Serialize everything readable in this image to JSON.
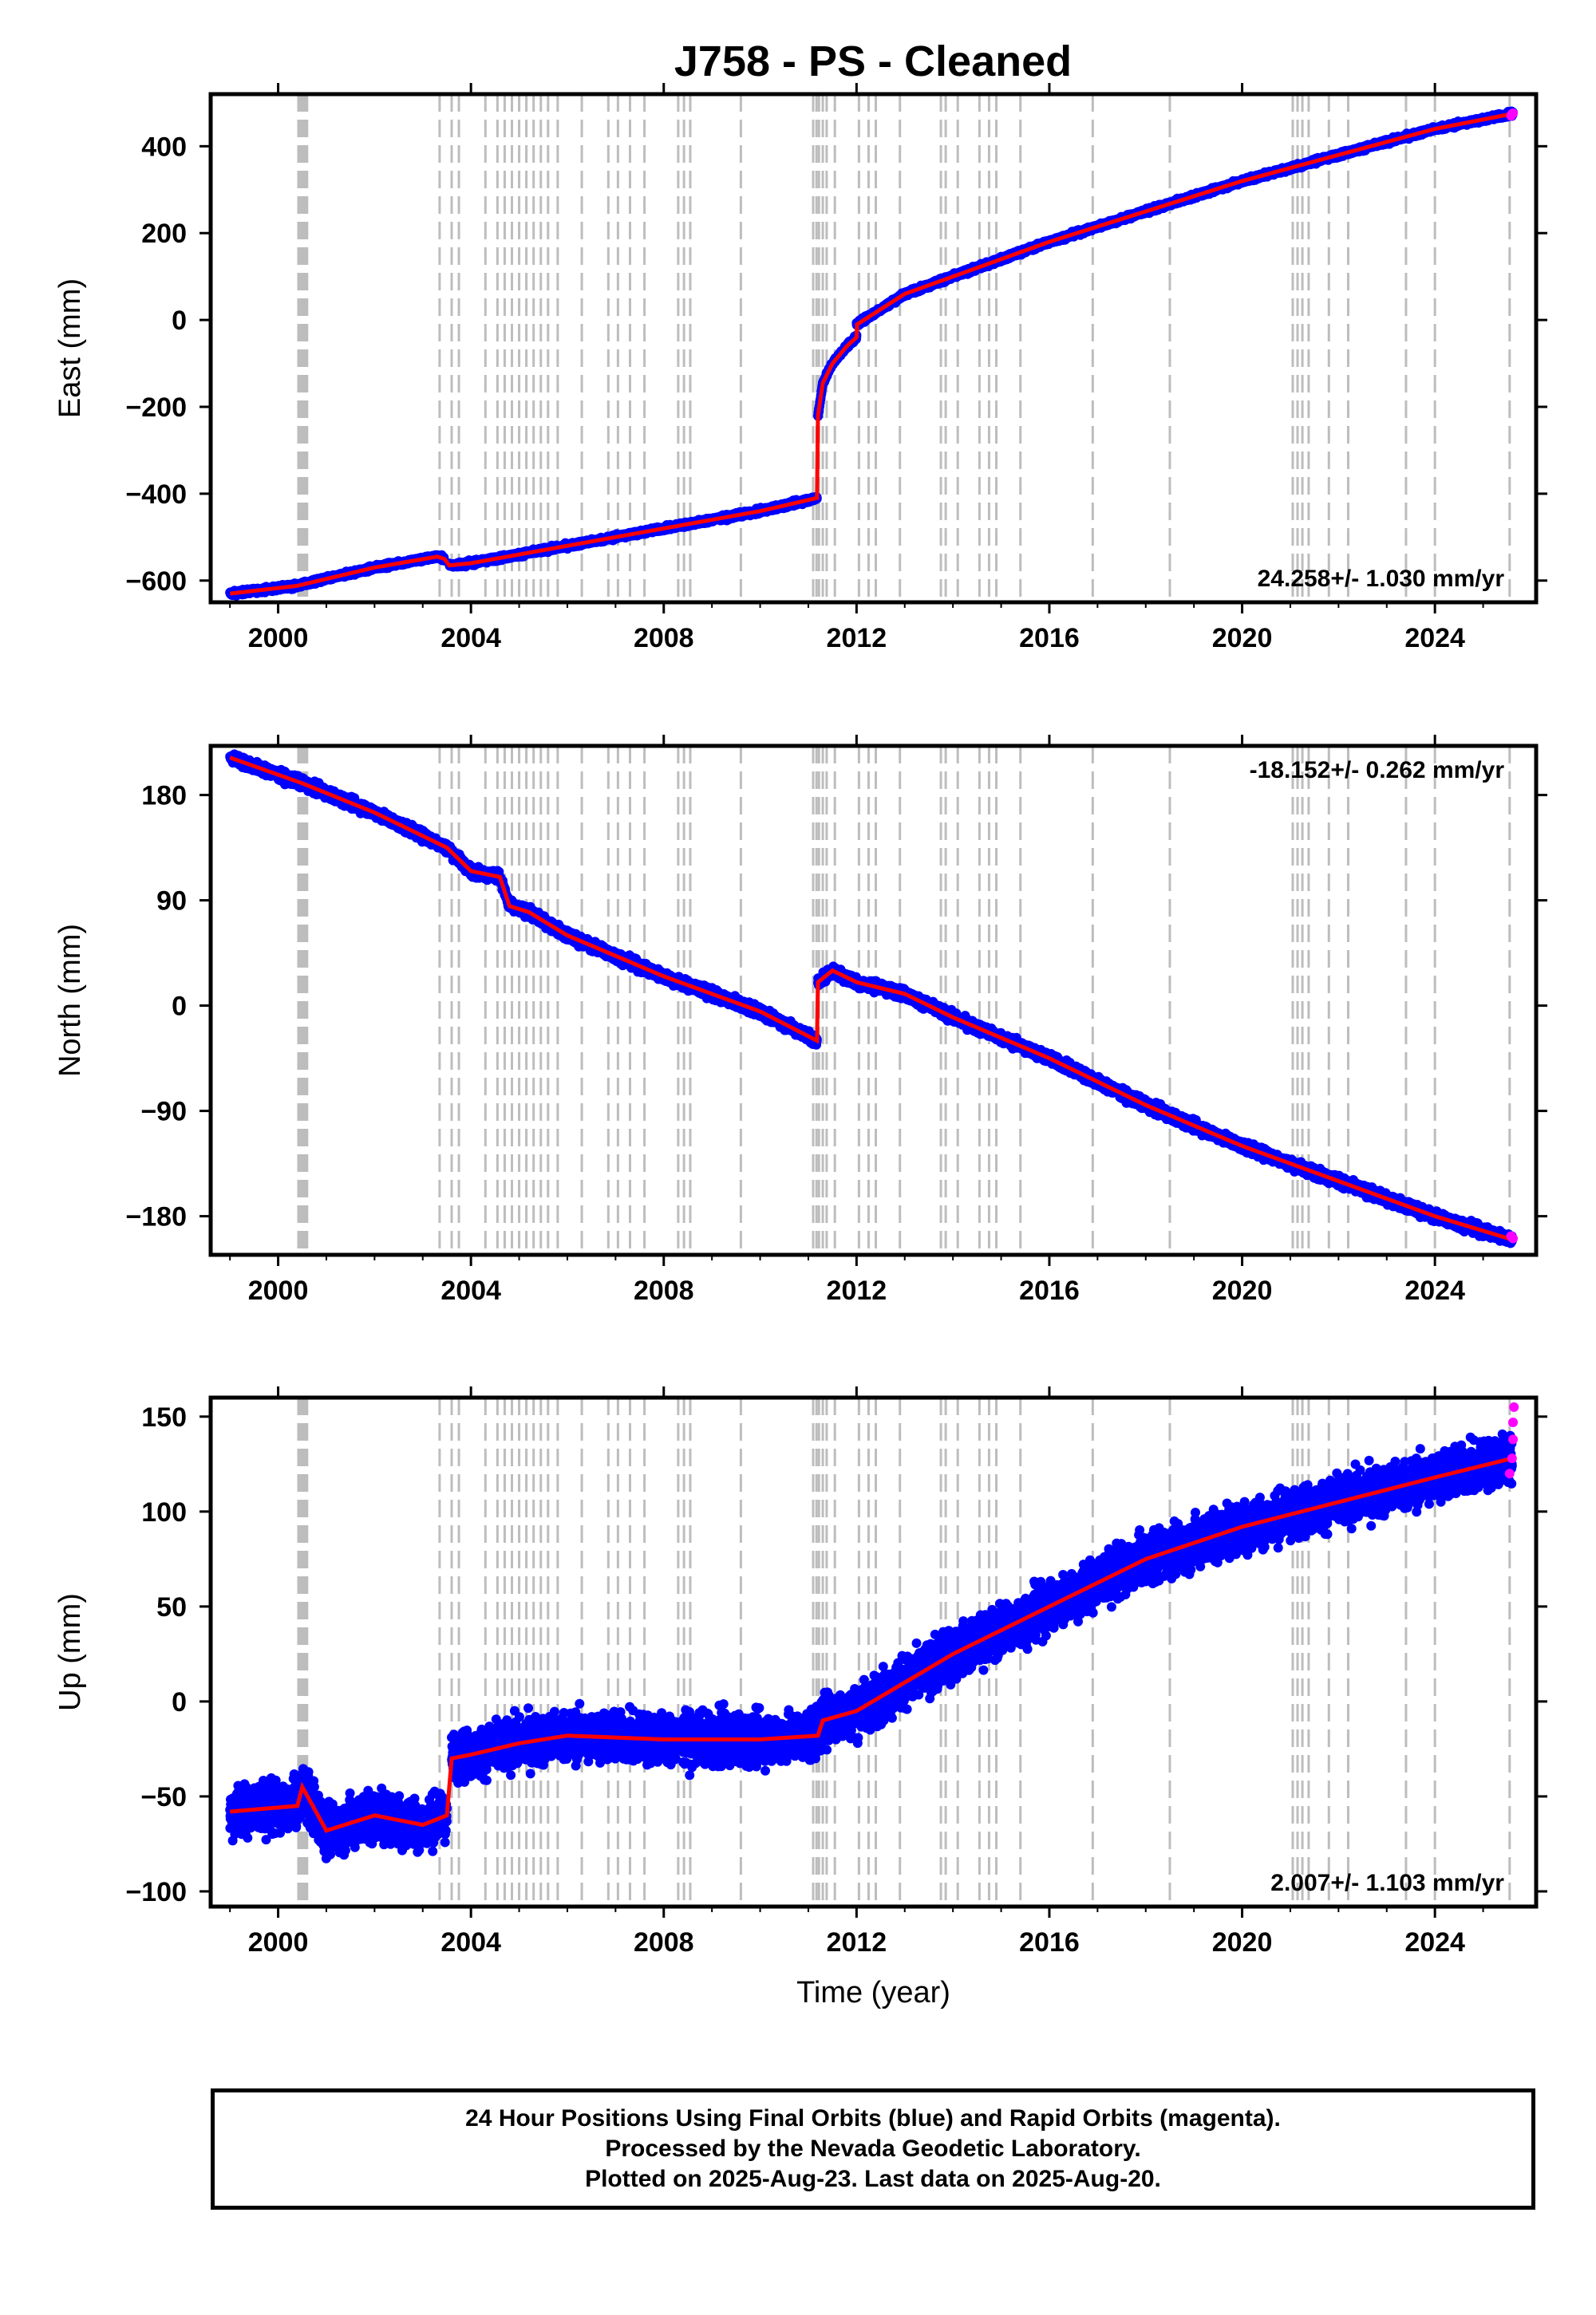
{
  "title": "J758  - PS - Cleaned",
  "colors": {
    "final_orbits": "#0000ff",
    "rapid_orbits": "#ff00ff",
    "trend": "#ff0000",
    "event_lines": "#bdbdbd",
    "frame": "#000000"
  },
  "footer": {
    "line1": "24 Hour Positions Using Final Orbits (blue) and Rapid Orbits (magenta).",
    "line2": "Processed by the Nevada Geodetic Laboratory.",
    "line3": "Plotted on 2025-Aug-23. Last data on 2025-Aug-20."
  },
  "chart_data": [
    {
      "type": "scatter",
      "component": "east",
      "ylabel": "East (mm)",
      "xlabel": "",
      "rate_label": "24.258+/- 1.030 mm/yr",
      "rate_position": "bottom-right",
      "xlim": [
        1998.6,
        2026.1
      ],
      "ylim": [
        -650,
        520
      ],
      "xticks": [
        2000,
        2004,
        2008,
        2012,
        2016,
        2020,
        2024
      ],
      "yticks": [
        -600,
        -400,
        -200,
        0,
        200,
        400
      ],
      "ytick_labels": [
        "−600",
        "−400",
        "−200",
        "0",
        "200",
        "400"
      ],
      "grid": false,
      "series": [
        {
          "name": "Final Orbits",
          "segments": [
            {
              "x": [
                1999.0,
                2000.4,
                2002.0,
                2003.3,
                2003.45
              ],
              "y": [
                -630,
                -612,
                -570,
                -545,
                -550
              ]
            },
            {
              "x": [
                2003.55,
                2004.0,
                2006.0,
                2008.0,
                2010.0,
                2011.18
              ],
              "y": [
                -565,
                -560,
                -520,
                -480,
                -440,
                -410
              ]
            },
            {
              "x": [
                2011.2,
                2011.3,
                2011.5,
                2011.8,
                2012.0
              ],
              "y": [
                -220,
                -145,
                -100,
                -60,
                -40
              ]
            },
            {
              "x": [
                2012.0,
                2013.0,
                2014.0,
                2016.0,
                2018.0,
                2020.0,
                2022.0,
                2024.0,
                2025.62
              ],
              "y": [
                -10,
                60,
                100,
                180,
                250,
                320,
                380,
                440,
                475
              ]
            }
          ],
          "noise": 5
        },
        {
          "name": "Rapid Orbits",
          "x": [
            2025.58,
            2025.6,
            2025.62
          ],
          "y": [
            470,
            474,
            476
          ]
        }
      ],
      "trend": {
        "x": [
          1999.0,
          2000.4,
          2002.0,
          2003.3,
          2003.45,
          2003.55,
          2004.0,
          2006.0,
          2008.0,
          2010.0,
          2011.18,
          2011.2,
          2011.3,
          2011.5,
          2011.8,
          2012.0,
          2012.01,
          2013.0,
          2014.0,
          2016.0,
          2018.0,
          2020.0,
          2022.0,
          2024.0,
          2025.62
        ],
        "y": [
          -630,
          -612,
          -570,
          -545,
          -550,
          -565,
          -560,
          -520,
          -480,
          -440,
          -410,
          -220,
          -145,
          -100,
          -60,
          -40,
          -10,
          60,
          100,
          180,
          250,
          320,
          380,
          440,
          475
        ]
      }
    },
    {
      "type": "scatter",
      "component": "north",
      "ylabel": "North (mm)",
      "xlabel": "",
      "rate_label": "-18.152+/- 0.262 mm/yr",
      "rate_position": "top-right",
      "xlim": [
        1998.6,
        2026.1
      ],
      "ylim": [
        -213,
        222
      ],
      "xticks": [
        2000,
        2004,
        2008,
        2012,
        2016,
        2020,
        2024
      ],
      "yticks": [
        -180,
        -90,
        0,
        90,
        180
      ],
      "ytick_labels": [
        "−180",
        "−90",
        "0",
        "90",
        "180"
      ],
      "grid": false,
      "series": [
        {
          "name": "Final Orbits",
          "segments": [
            {
              "x": [
                1999.0,
                2000.5,
                2002.0,
                2003.5,
                2004.0,
                2004.6,
                2004.8,
                2005.2,
                2006.0,
                2008.0,
                2010.0,
                2011.18
              ],
              "y": [
                212,
                190,
                165,
                135,
                115,
                110,
                85,
                80,
                60,
                25,
                -5,
                -30
              ]
            },
            {
              "x": [
                2011.2,
                2011.5,
                2012.0,
                2013.0,
                2014.0,
                2016.0,
                2018.0,
                2020.0,
                2022.0,
                2024.0,
                2025.6
              ],
              "y": [
                20,
                30,
                20,
                10,
                -10,
                -45,
                -85,
                -120,
                -150,
                -180,
                -200
              ]
            }
          ],
          "noise": 4
        },
        {
          "name": "Rapid Orbits",
          "x": [
            2025.58,
            2025.62
          ],
          "y": [
            -197,
            -199
          ]
        }
      ],
      "trend": {
        "x": [
          1999.0,
          2000.5,
          2002.0,
          2003.5,
          2004.0,
          2004.6,
          2004.8,
          2005.2,
          2006.0,
          2008.0,
          2010.0,
          2011.18,
          2011.2,
          2011.5,
          2012.0,
          2013.0,
          2014.0,
          2016.0,
          2018.0,
          2020.0,
          2022.0,
          2024.0,
          2025.6
        ],
        "y": [
          212,
          190,
          165,
          135,
          115,
          110,
          85,
          80,
          60,
          25,
          -5,
          -30,
          20,
          30,
          20,
          10,
          -10,
          -45,
          -85,
          -120,
          -150,
          -180,
          -200
        ]
      }
    },
    {
      "type": "scatter",
      "component": "up",
      "ylabel": "Up (mm)",
      "xlabel": "Time (year)",
      "rate_label": "2.007+/- 1.103 mm/yr",
      "rate_position": "bottom-right",
      "xlim": [
        1998.6,
        2026.1
      ],
      "ylim": [
        -108,
        160
      ],
      "xticks": [
        2000,
        2004,
        2008,
        2012,
        2016,
        2020,
        2024
      ],
      "yticks": [
        -100,
        -50,
        0,
        50,
        100,
        150
      ],
      "ytick_labels": [
        "−100",
        "−50",
        "0",
        "50",
        "100",
        "150"
      ],
      "grid": false,
      "series": [
        {
          "name": "Final Orbits",
          "segments": [
            {
              "x": [
                1999.0,
                2000.4,
                2000.5,
                2001.0,
                2002.0,
                2003.0,
                2003.5
              ],
              "y": [
                -58,
                -55,
                -45,
                -68,
                -60,
                -65,
                -60
              ]
            },
            {
              "x": [
                2003.6,
                2004.0,
                2005.0,
                2006.0,
                2008.0,
                2010.0,
                2011.2,
                2011.3,
                2012.0,
                2014.0,
                2016.0,
                2018.0,
                2020.0,
                2022.0,
                2024.0,
                2025.6
              ],
              "y": [
                -30,
                -28,
                -22,
                -18,
                -20,
                -20,
                -18,
                -10,
                -5,
                25,
                50,
                75,
                92,
                105,
                118,
                128
              ]
            }
          ],
          "noise": 12
        },
        {
          "name": "Rapid Orbits",
          "x": [
            2025.55,
            2025.6,
            2025.62,
            2025.62,
            2025.64
          ],
          "y": [
            120,
            128,
            138,
            147,
            155
          ]
        }
      ],
      "trend": {
        "x": [
          1999.0,
          2000.4,
          2000.5,
          2001.0,
          2002.0,
          2003.0,
          2003.5,
          2003.6,
          2004.0,
          2005.0,
          2006.0,
          2008.0,
          2010.0,
          2011.2,
          2011.3,
          2012.0,
          2014.0,
          2016.0,
          2018.0,
          2020.0,
          2022.0,
          2024.0,
          2025.6
        ],
        "y": [
          -58,
          -55,
          -45,
          -68,
          -60,
          -65,
          -60,
          -30,
          -28,
          -22,
          -18,
          -20,
          -20,
          -18,
          -10,
          -5,
          25,
          50,
          75,
          92,
          105,
          118,
          128
        ]
      }
    }
  ],
  "event_lines": [
    2000.42,
    2000.45,
    2000.48,
    2000.51,
    2000.54,
    2000.57,
    2000.6,
    2003.35,
    2003.6,
    2003.75,
    2004.3,
    2004.55,
    2004.7,
    2004.85,
    2005.0,
    2005.15,
    2005.3,
    2005.45,
    2005.6,
    2005.8,
    2006.3,
    2006.85,
    2007.05,
    2007.3,
    2007.6,
    2008.3,
    2008.42,
    2008.55,
    2009.6,
    2011.1,
    2011.17,
    2011.22,
    2011.3,
    2011.38,
    2011.55,
    2012.05,
    2012.25,
    2012.4,
    2012.9,
    2013.75,
    2013.85,
    2014.1,
    2014.55,
    2014.75,
    2014.9,
    2015.4,
    2016.9,
    2018.5,
    2021.05,
    2021.15,
    2021.25,
    2021.38,
    2021.8,
    2022.2,
    2023.4,
    2024.0,
    2025.55
  ]
}
